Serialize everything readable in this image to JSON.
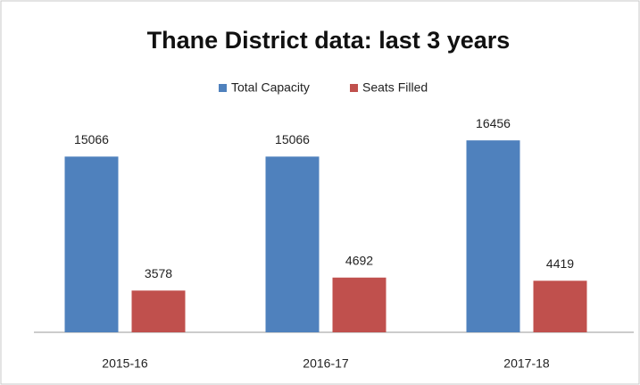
{
  "chart_data": {
    "type": "bar",
    "title": "Thane District data: last 3 years",
    "categories": [
      "2015-16",
      "2016-17",
      "2017-18"
    ],
    "series": [
      {
        "name": "Total Capacity",
        "color": "#4f81bd",
        "values": [
          15066,
          15066,
          16456
        ]
      },
      {
        "name": "Seats Filled",
        "color": "#c0504d",
        "values": [
          3578,
          4692,
          4419
        ]
      }
    ],
    "ylim": [
      0,
      18000
    ],
    "legend": "top"
  }
}
